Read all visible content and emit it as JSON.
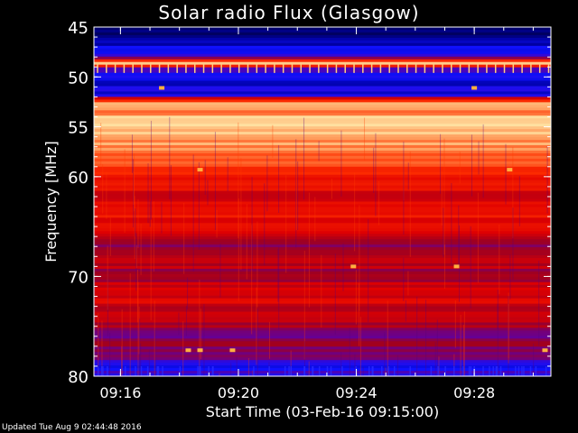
{
  "chart_data": {
    "type": "heatmap",
    "title": "Solar radio Flux (Glasgow)",
    "xlabel": "Start Time (03-Feb-16 09:15:00)",
    "ylabel": "Frequency [MHz]",
    "x_unit": "minutes after 09:15:00",
    "xlim": [
      0.1,
      15.6
    ],
    "ylim": [
      45,
      80
    ],
    "y_scale": "linear (inverted, 45 at top)",
    "x_ticks": [
      {
        "value": 1,
        "label": "09:16"
      },
      {
        "value": 5,
        "label": "09:20"
      },
      {
        "value": 9,
        "label": "09:24"
      },
      {
        "value": 13,
        "label": "09:28"
      }
    ],
    "y_ticks": [
      {
        "value": 45,
        "label": "45"
      },
      {
        "value": 50,
        "label": "50"
      },
      {
        "value": 55,
        "label": "55"
      },
      {
        "value": 60,
        "label": "60"
      },
      {
        "value": 70,
        "label": "70"
      },
      {
        "value": 80,
        "label": "80"
      }
    ],
    "colormap": [
      "#000030",
      "#0000a0",
      "#1010ff",
      "#6000a0",
      "#a00020",
      "#e00000",
      "#ff3000",
      "#ff9050",
      "#ffe0a0",
      "#ffffff"
    ],
    "intensity_profile": [
      {
        "freq": 45.0,
        "level": 0.05
      },
      {
        "freq": 46.5,
        "level": 0.15
      },
      {
        "freq": 47.5,
        "level": 0.2
      },
      {
        "freq": 48.2,
        "level": 0.4
      },
      {
        "freq": 48.6,
        "level": 0.95
      },
      {
        "freq": 49.2,
        "level": 0.3
      },
      {
        "freq": 50.5,
        "level": 0.18
      },
      {
        "freq": 51.8,
        "level": 0.2
      },
      {
        "freq": 52.6,
        "level": 0.85
      },
      {
        "freq": 53.5,
        "level": 0.75
      },
      {
        "freq": 54.5,
        "level": 0.9
      },
      {
        "freq": 56.0,
        "level": 0.82
      },
      {
        "freq": 58.0,
        "level": 0.72
      },
      {
        "freq": 60.0,
        "level": 0.65
      },
      {
        "freq": 62.0,
        "level": 0.5
      },
      {
        "freq": 63.5,
        "level": 0.62
      },
      {
        "freq": 65.0,
        "level": 0.55
      },
      {
        "freq": 66.5,
        "level": 0.42
      },
      {
        "freq": 68.0,
        "level": 0.5
      },
      {
        "freq": 70.0,
        "level": 0.45
      },
      {
        "freq": 72.0,
        "level": 0.55
      },
      {
        "freq": 74.0,
        "level": 0.5
      },
      {
        "freq": 76.0,
        "level": 0.4
      },
      {
        "freq": 78.0,
        "level": 0.42
      },
      {
        "freq": 79.0,
        "level": 0.22
      },
      {
        "freq": 80.0,
        "level": 0.3
      }
    ],
    "spot_features": [
      {
        "time": 2.4,
        "freq": 51.1
      },
      {
        "time": 13.0,
        "freq": 51.1
      },
      {
        "time": 3.7,
        "freq": 59.3
      },
      {
        "time": 14.2,
        "freq": 59.3
      },
      {
        "time": 3.7,
        "freq": 77.4
      },
      {
        "time": 3.3,
        "freq": 77.4
      },
      {
        "time": 4.8,
        "freq": 77.4
      },
      {
        "time": 12.4,
        "freq": 69.0
      },
      {
        "time": 8.9,
        "freq": 69.0
      },
      {
        "time": 15.4,
        "freq": 77.4
      }
    ]
  },
  "footer_text": "Updated Tue Aug  9 02:44:48 2016"
}
